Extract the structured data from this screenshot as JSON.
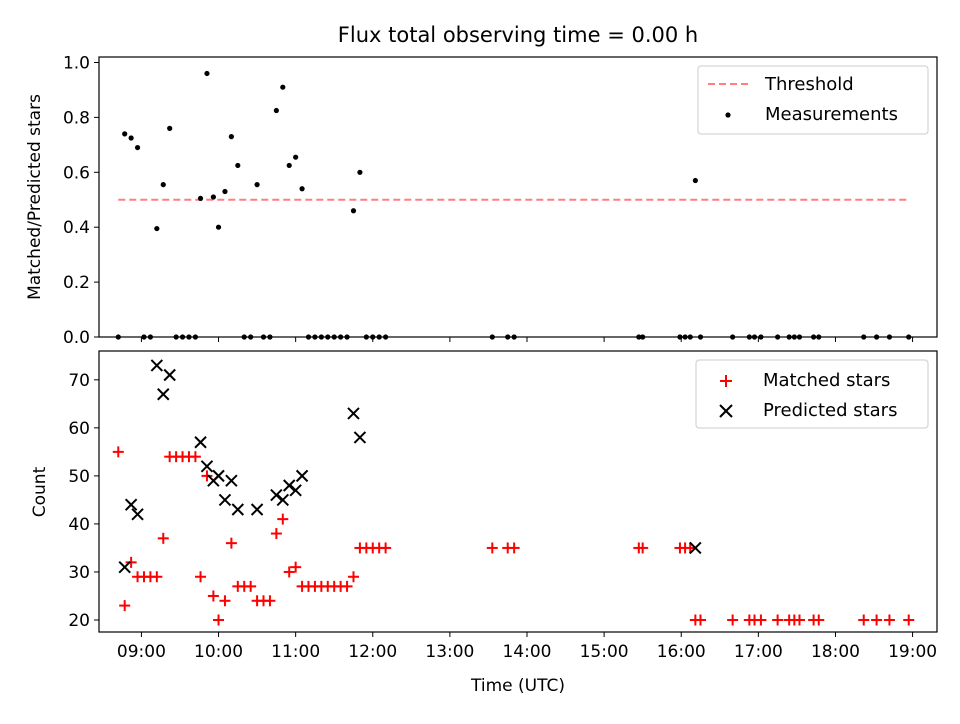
{
  "title": "Flux total observing time = 0.00 h",
  "chart_data": [
    {
      "type": "scatter",
      "ylabel": "Matched/Predicted stars",
      "xlabel": "",
      "xlim": [
        "08:27",
        "19:19"
      ],
      "ylim": [
        0,
        1.02
      ],
      "yticks": [
        "0.0",
        "0.2",
        "0.4",
        "0.6",
        "0.8",
        "1.0"
      ],
      "grid": false,
      "legend_position": "top-right",
      "series": [
        {
          "name": "Threshold",
          "kind": "dashed-line",
          "color": "#ff7f7f",
          "points": [
            {
              "x": "08:42",
              "y": 0.5
            },
            {
              "x": "18:57",
              "y": 0.5
            }
          ]
        },
        {
          "name": "Measurements",
          "kind": "scatter",
          "color": "#000000",
          "points": [
            {
              "x": "08:42",
              "y": 0.0
            },
            {
              "x": "08:47",
              "y": 0.74
            },
            {
              "x": "08:52",
              "y": 0.725
            },
            {
              "x": "08:57",
              "y": 0.69
            },
            {
              "x": "09:02",
              "y": 0.0
            },
            {
              "x": "09:07",
              "y": 0.0
            },
            {
              "x": "09:12",
              "y": 0.395
            },
            {
              "x": "09:17",
              "y": 0.555
            },
            {
              "x": "09:22",
              "y": 0.76
            },
            {
              "x": "09:27",
              "y": 0.0
            },
            {
              "x": "09:32",
              "y": 0.0
            },
            {
              "x": "09:37",
              "y": 0.0
            },
            {
              "x": "09:42",
              "y": 0.0
            },
            {
              "x": "09:46",
              "y": 0.505
            },
            {
              "x": "09:51",
              "y": 0.96
            },
            {
              "x": "09:56",
              "y": 0.51
            },
            {
              "x": "10:00",
              "y": 0.4
            },
            {
              "x": "10:05",
              "y": 0.53
            },
            {
              "x": "10:10",
              "y": 0.73
            },
            {
              "x": "10:15",
              "y": 0.625
            },
            {
              "x": "10:20",
              "y": 0.0
            },
            {
              "x": "10:25",
              "y": 0.0
            },
            {
              "x": "10:30",
              "y": 0.555
            },
            {
              "x": "10:35",
              "y": 0.0
            },
            {
              "x": "10:40",
              "y": 0.0
            },
            {
              "x": "10:45",
              "y": 0.825
            },
            {
              "x": "10:50",
              "y": 0.91
            },
            {
              "x": "10:55",
              "y": 0.625
            },
            {
              "x": "11:00",
              "y": 0.655
            },
            {
              "x": "11:05",
              "y": 0.54
            },
            {
              "x": "11:10",
              "y": 0.0
            },
            {
              "x": "11:15",
              "y": 0.0
            },
            {
              "x": "11:20",
              "y": 0.0
            },
            {
              "x": "11:25",
              "y": 0.0
            },
            {
              "x": "11:30",
              "y": 0.0
            },
            {
              "x": "11:35",
              "y": 0.0
            },
            {
              "x": "11:40",
              "y": 0.0
            },
            {
              "x": "11:45",
              "y": 0.46
            },
            {
              "x": "11:50",
              "y": 0.6
            },
            {
              "x": "11:55",
              "y": 0.0
            },
            {
              "x": "12:00",
              "y": 0.0
            },
            {
              "x": "12:05",
              "y": 0.0
            },
            {
              "x": "12:10",
              "y": 0.0
            },
            {
              "x": "13:33",
              "y": 0.0
            },
            {
              "x": "13:45",
              "y": 0.0
            },
            {
              "x": "13:50",
              "y": 0.0
            },
            {
              "x": "15:27",
              "y": 0.0
            },
            {
              "x": "15:30",
              "y": 0.0
            },
            {
              "x": "15:59",
              "y": 0.0
            },
            {
              "x": "16:03",
              "y": 0.0
            },
            {
              "x": "16:07",
              "y": 0.0
            },
            {
              "x": "16:11",
              "y": 0.57
            },
            {
              "x": "16:15",
              "y": 0.0
            },
            {
              "x": "16:40",
              "y": 0.0
            },
            {
              "x": "16:53",
              "y": 0.0
            },
            {
              "x": "16:57",
              "y": 0.0
            },
            {
              "x": "17:02",
              "y": 0.0
            },
            {
              "x": "17:15",
              "y": 0.0
            },
            {
              "x": "17:24",
              "y": 0.0
            },
            {
              "x": "17:28",
              "y": 0.0
            },
            {
              "x": "17:32",
              "y": 0.0
            },
            {
              "x": "17:43",
              "y": 0.0
            },
            {
              "x": "17:47",
              "y": 0.0
            },
            {
              "x": "18:22",
              "y": 0.0
            },
            {
              "x": "18:32",
              "y": 0.0
            },
            {
              "x": "18:42",
              "y": 0.0
            },
            {
              "x": "18:57",
              "y": 0.0
            }
          ]
        }
      ]
    },
    {
      "type": "scatter",
      "ylabel": "Count",
      "xlabel": "Time (UTC)",
      "xlim": [
        "08:27",
        "19:19"
      ],
      "ylim": [
        17.5,
        76
      ],
      "yticks": [
        "20",
        "30",
        "40",
        "50",
        "60",
        "70"
      ],
      "xticks": [
        "09:00",
        "10:00",
        "11:00",
        "12:00",
        "13:00",
        "14:00",
        "15:00",
        "16:00",
        "17:00",
        "18:00",
        "19:00"
      ],
      "grid": false,
      "legend_position": "top-right",
      "series": [
        {
          "name": "Matched stars",
          "kind": "plus",
          "color": "#ff0000",
          "points": [
            {
              "x": "08:42",
              "y": 55
            },
            {
              "x": "08:47",
              "y": 23
            },
            {
              "x": "08:52",
              "y": 32
            },
            {
              "x": "08:57",
              "y": 29
            },
            {
              "x": "09:02",
              "y": 29
            },
            {
              "x": "09:07",
              "y": 29
            },
            {
              "x": "09:12",
              "y": 29
            },
            {
              "x": "09:17",
              "y": 37
            },
            {
              "x": "09:22",
              "y": 54
            },
            {
              "x": "09:27",
              "y": 54
            },
            {
              "x": "09:32",
              "y": 54
            },
            {
              "x": "09:37",
              "y": 54
            },
            {
              "x": "09:42",
              "y": 54
            },
            {
              "x": "09:46",
              "y": 29
            },
            {
              "x": "09:51",
              "y": 50
            },
            {
              "x": "09:56",
              "y": 25
            },
            {
              "x": "10:00",
              "y": 20
            },
            {
              "x": "10:05",
              "y": 24
            },
            {
              "x": "10:10",
              "y": 36
            },
            {
              "x": "10:15",
              "y": 27
            },
            {
              "x": "10:20",
              "y": 27
            },
            {
              "x": "10:25",
              "y": 27
            },
            {
              "x": "10:30",
              "y": 24
            },
            {
              "x": "10:35",
              "y": 24
            },
            {
              "x": "10:40",
              "y": 24
            },
            {
              "x": "10:45",
              "y": 38
            },
            {
              "x": "10:50",
              "y": 41
            },
            {
              "x": "10:55",
              "y": 30
            },
            {
              "x": "11:00",
              "y": 31
            },
            {
              "x": "11:05",
              "y": 27
            },
            {
              "x": "11:10",
              "y": 27
            },
            {
              "x": "11:15",
              "y": 27
            },
            {
              "x": "11:20",
              "y": 27
            },
            {
              "x": "11:25",
              "y": 27
            },
            {
              "x": "11:30",
              "y": 27
            },
            {
              "x": "11:35",
              "y": 27
            },
            {
              "x": "11:40",
              "y": 27
            },
            {
              "x": "11:45",
              "y": 29
            },
            {
              "x": "11:50",
              "y": 35
            },
            {
              "x": "11:55",
              "y": 35
            },
            {
              "x": "12:00",
              "y": 35
            },
            {
              "x": "12:05",
              "y": 35
            },
            {
              "x": "12:10",
              "y": 35
            },
            {
              "x": "13:33",
              "y": 35
            },
            {
              "x": "13:45",
              "y": 35
            },
            {
              "x": "13:50",
              "y": 35
            },
            {
              "x": "15:27",
              "y": 35
            },
            {
              "x": "15:30",
              "y": 35
            },
            {
              "x": "15:59",
              "y": 35
            },
            {
              "x": "16:03",
              "y": 35
            },
            {
              "x": "16:07",
              "y": 35
            },
            {
              "x": "16:11",
              "y": 20
            },
            {
              "x": "16:15",
              "y": 20
            },
            {
              "x": "16:40",
              "y": 20
            },
            {
              "x": "16:53",
              "y": 20
            },
            {
              "x": "16:57",
              "y": 20
            },
            {
              "x": "17:02",
              "y": 20
            },
            {
              "x": "17:15",
              "y": 20
            },
            {
              "x": "17:24",
              "y": 20
            },
            {
              "x": "17:28",
              "y": 20
            },
            {
              "x": "17:32",
              "y": 20
            },
            {
              "x": "17:43",
              "y": 20
            },
            {
              "x": "17:47",
              "y": 20
            },
            {
              "x": "18:22",
              "y": 20
            },
            {
              "x": "18:32",
              "y": 20
            },
            {
              "x": "18:42",
              "y": 20
            },
            {
              "x": "18:57",
              "y": 20
            }
          ]
        },
        {
          "name": "Predicted stars",
          "kind": "x",
          "color": "#000000",
          "points": [
            {
              "x": "08:47",
              "y": 31
            },
            {
              "x": "08:52",
              "y": 44
            },
            {
              "x": "08:57",
              "y": 42
            },
            {
              "x": "09:12",
              "y": 73
            },
            {
              "x": "09:17",
              "y": 67
            },
            {
              "x": "09:22",
              "y": 71
            },
            {
              "x": "09:46",
              "y": 57
            },
            {
              "x": "09:51",
              "y": 52
            },
            {
              "x": "09:56",
              "y": 49
            },
            {
              "x": "10:00",
              "y": 50
            },
            {
              "x": "10:05",
              "y": 45
            },
            {
              "x": "10:10",
              "y": 49
            },
            {
              "x": "10:15",
              "y": 43
            },
            {
              "x": "10:30",
              "y": 43
            },
            {
              "x": "10:45",
              "y": 46
            },
            {
              "x": "10:50",
              "y": 45
            },
            {
              "x": "10:55",
              "y": 48
            },
            {
              "x": "11:00",
              "y": 47
            },
            {
              "x": "11:05",
              "y": 50
            },
            {
              "x": "11:45",
              "y": 63
            },
            {
              "x": "11:50",
              "y": 58
            },
            {
              "x": "16:11",
              "y": 35
            }
          ]
        }
      ]
    }
  ]
}
